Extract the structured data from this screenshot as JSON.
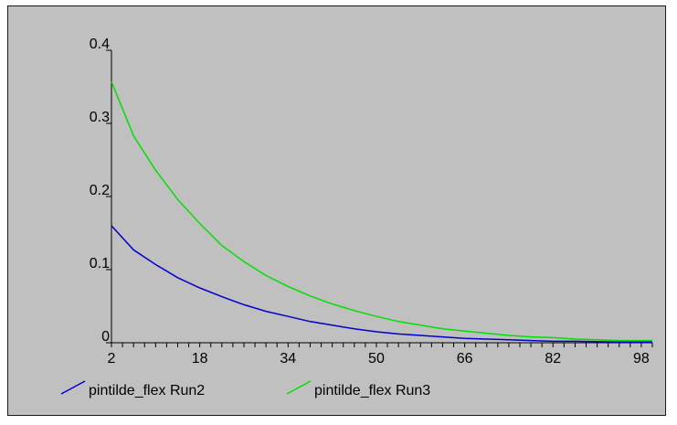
{
  "chart_data": {
    "type": "line",
    "title": "",
    "xlabel": "",
    "ylabel": "",
    "x_ticks": [
      2,
      18,
      34,
      50,
      66,
      82,
      98
    ],
    "y_ticks": [
      {
        "value": 0.0,
        "label": "0"
      },
      {
        "value": 0.1,
        "label": "0.1"
      },
      {
        "value": 0.2,
        "label": "0.2"
      },
      {
        "value": 0.3,
        "label": "0.3"
      },
      {
        "value": 0.4,
        "label": "0.4"
      }
    ],
    "xlim": [
      2,
      100
    ],
    "ylim": [
      0,
      0.4
    ],
    "grid": false,
    "legend_position": "bottom",
    "x": [
      2,
      6,
      10,
      14,
      18,
      22,
      26,
      30,
      34,
      38,
      42,
      46,
      50,
      54,
      58,
      62,
      66,
      70,
      74,
      78,
      82,
      86,
      90,
      94,
      98,
      100
    ],
    "series": [
      {
        "name": "pintilde_flex Run2",
        "color": "#0000cc",
        "values": [
          0.16,
          0.127,
          0.107,
          0.089,
          0.075,
          0.063,
          0.052,
          0.043,
          0.036,
          0.029,
          0.024,
          0.019,
          0.015,
          0.012,
          0.01,
          0.008,
          0.006,
          0.005,
          0.004,
          0.003,
          0.002,
          0.002,
          0.0015,
          0.001,
          0.001,
          0.001
        ]
      },
      {
        "name": "pintilde_flex Run3",
        "color": "#00e000",
        "values": [
          0.357,
          0.283,
          0.236,
          0.196,
          0.163,
          0.133,
          0.111,
          0.092,
          0.077,
          0.064,
          0.053,
          0.044,
          0.036,
          0.029,
          0.024,
          0.019,
          0.016,
          0.013,
          0.01,
          0.008,
          0.007,
          0.005,
          0.004,
          0.003,
          0.003,
          0.003
        ]
      }
    ]
  }
}
